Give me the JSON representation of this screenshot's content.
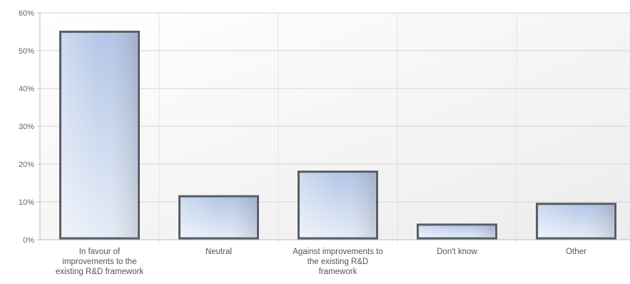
{
  "chart_data": {
    "type": "bar",
    "categories": [
      "In favour of\nimprovements to the\nexisting R&D framework",
      "Neutral",
      "Against improvements to\nthe existing R&D\nframework",
      "Don't know",
      "Other"
    ],
    "values": [
      55,
      11.5,
      18,
      4,
      9.5
    ],
    "ylim": [
      0,
      60
    ],
    "yticks": [
      "0%",
      "10%",
      "20%",
      "30%",
      "40%",
      "50%",
      "60%"
    ],
    "title": "",
    "xlabel": "",
    "ylabel": "",
    "grid": true,
    "legend": "none",
    "colors": {
      "bar_top": "#b3c6e7",
      "bar_bottom": "#e6edf8",
      "bar_edge": "#5a5f66",
      "grid": "#d4d4d4"
    }
  }
}
